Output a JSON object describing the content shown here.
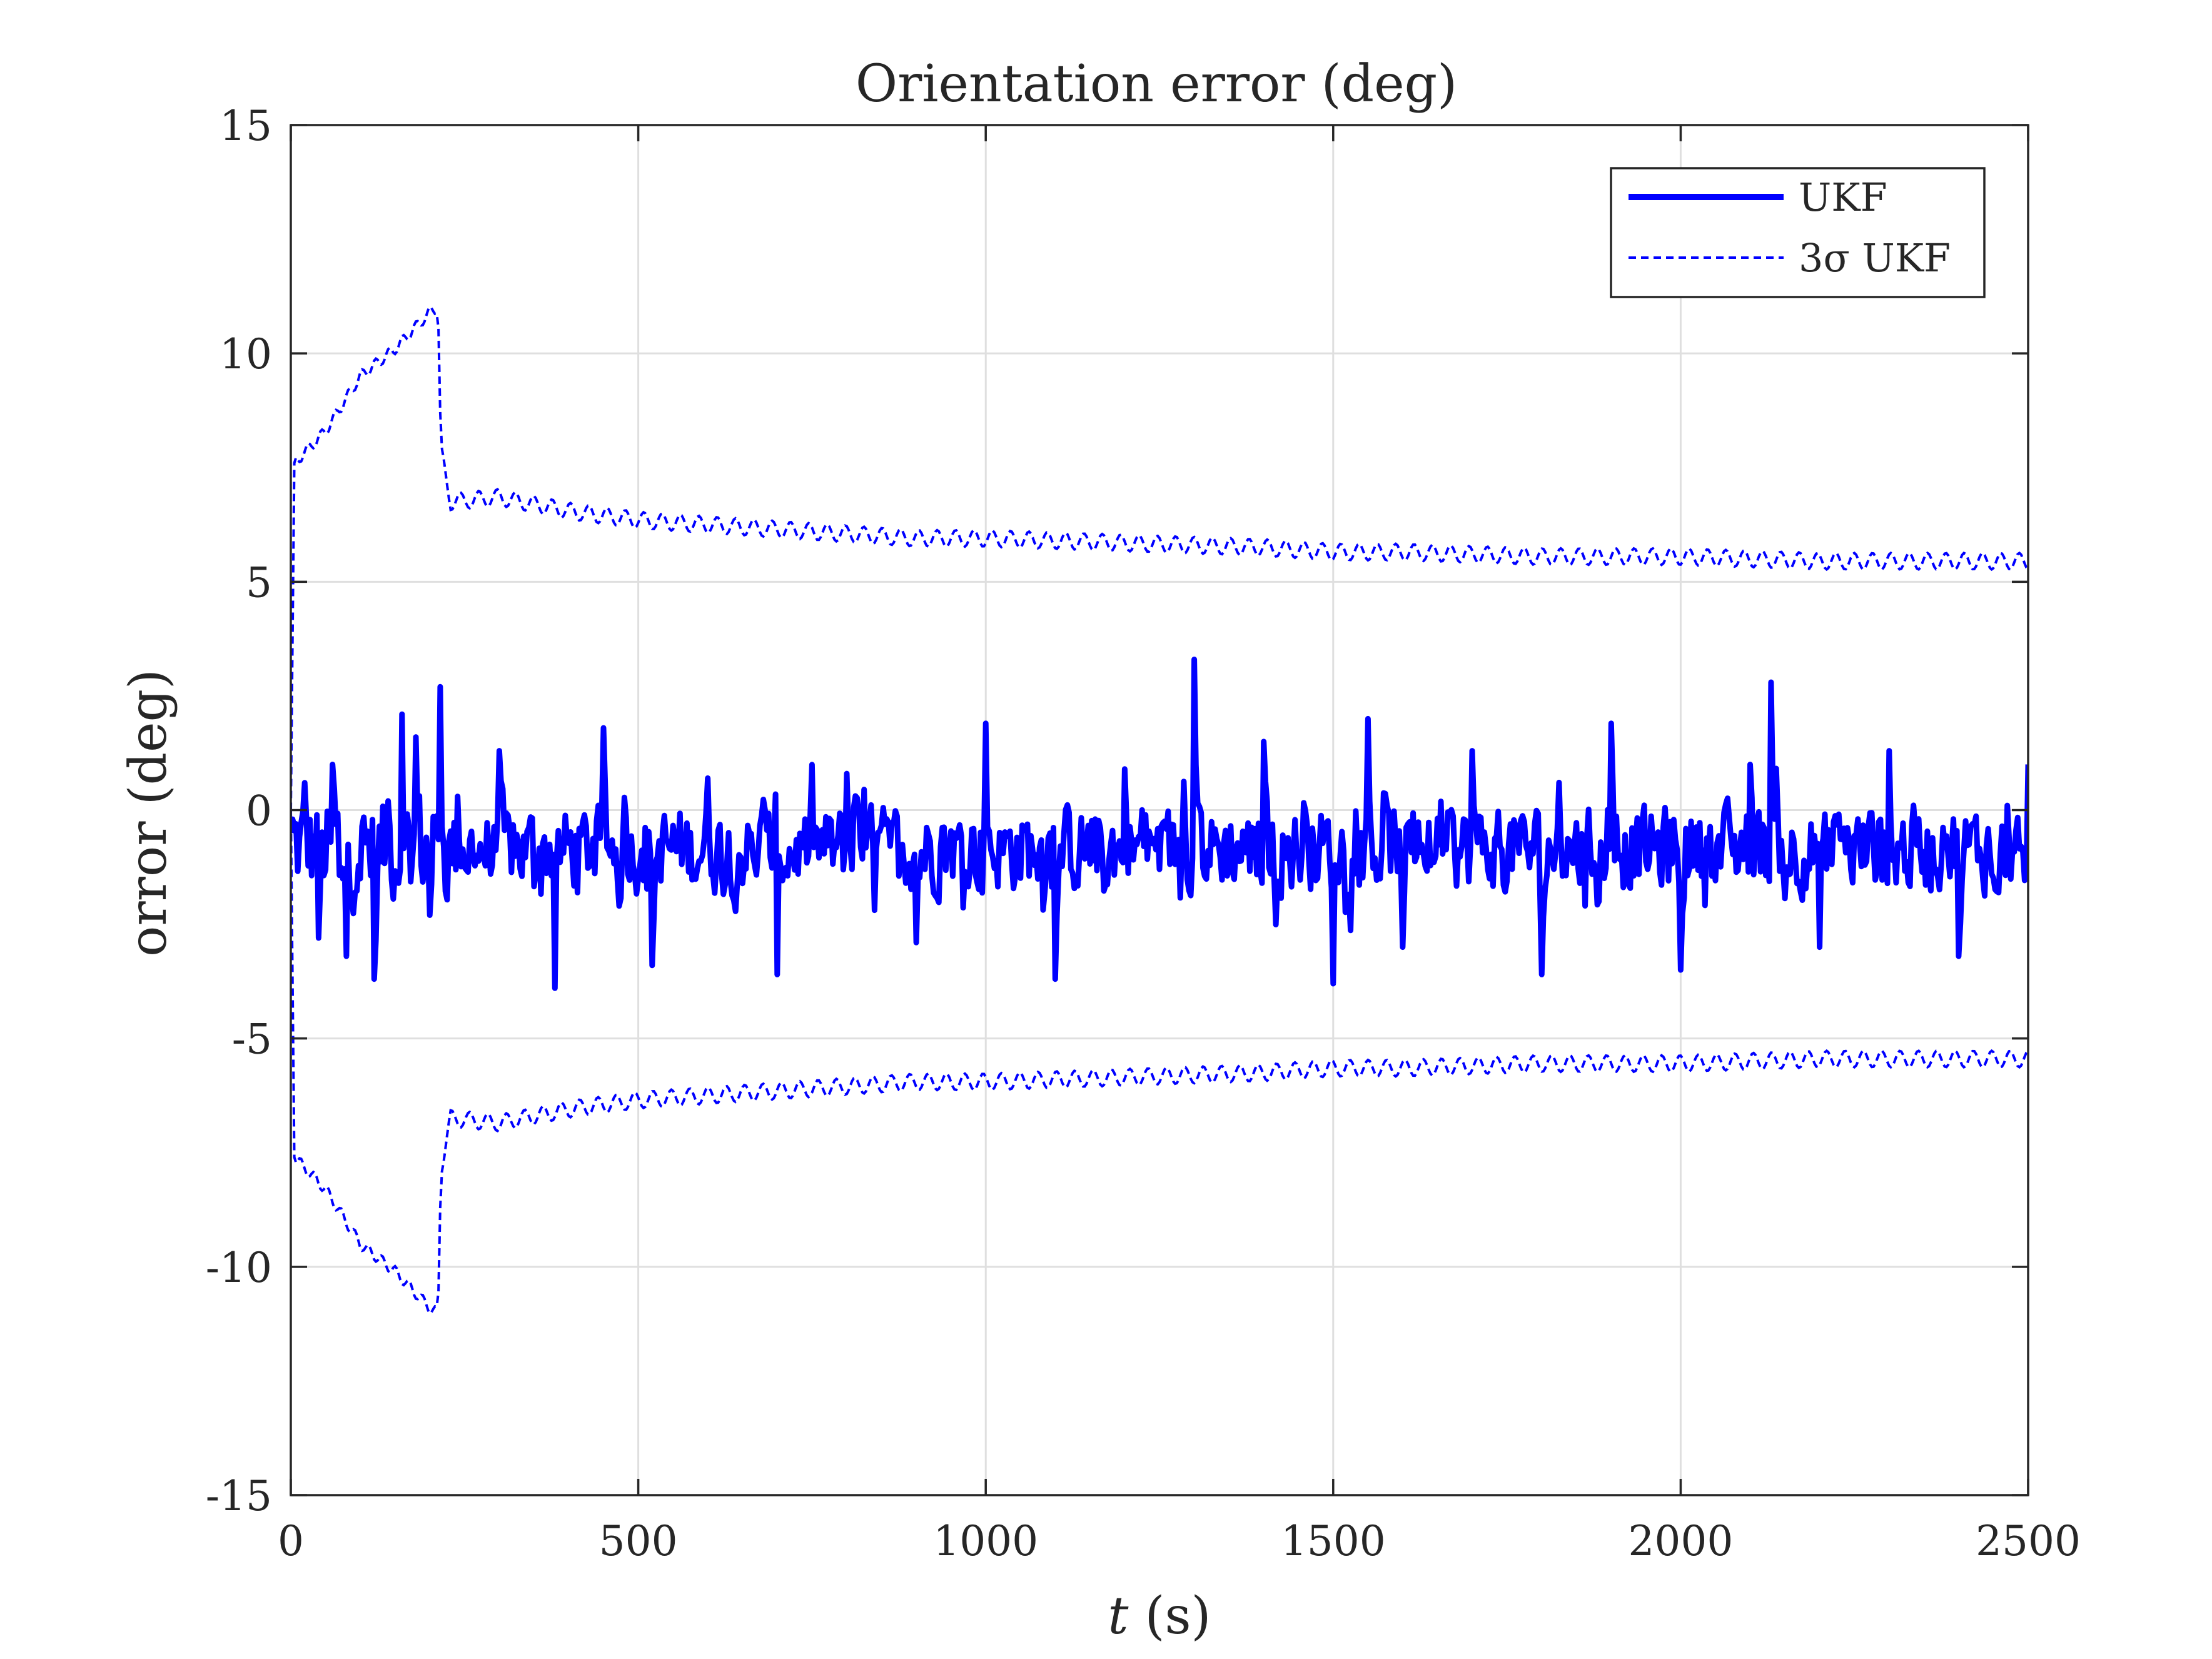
{
  "chart_data": {
    "type": "line",
    "title": "Orientation error (deg)",
    "xlabel_italic": "t",
    "xlabel_rest": " (s)",
    "ylabel": "orror (deg)",
    "xlim": [
      0,
      2500
    ],
    "ylim": [
      -15,
      15
    ],
    "xticks": [
      0,
      500,
      1000,
      1500,
      2000,
      2500
    ],
    "xtick_labels": [
      "0",
      "500",
      "1000",
      "1500",
      "2000",
      "2500"
    ],
    "yticks": [
      -15,
      -10,
      -5,
      0,
      5,
      10,
      15
    ],
    "ytick_labels": [
      "-15",
      "-10",
      "-5",
      "0",
      "5",
      "10",
      "15"
    ],
    "grid": true,
    "legend_position": "top-right",
    "series": [
      {
        "name": "UKF",
        "color": "#0000ff",
        "style": "solid",
        "note": "noisy estimation error oscillating around about -1 deg, mostly between -3 and +2 deg",
        "x": [
          0,
          20,
          40,
          60,
          80,
          100,
          120,
          140,
          160,
          180,
          200,
          215,
          240,
          300,
          380,
          450,
          520,
          600,
          700,
          800,
          900,
          1000,
          1100,
          1200,
          1300,
          1400,
          1500,
          1550,
          1600,
          1700,
          1800,
          1900,
          2000,
          2100,
          2130,
          2200,
          2300,
          2400,
          2500
        ],
        "y": [
          -0.5,
          0.6,
          -2.8,
          1.0,
          -3.2,
          -1.5,
          -3.7,
          0.2,
          2.1,
          1.6,
          -2.3,
          2.7,
          0.3,
          1.3,
          -3.9,
          1.8,
          -3.4,
          0.7,
          -3.6,
          0.8,
          -2.9,
          1.9,
          -3.7,
          0.9,
          3.3,
          1.5,
          -3.8,
          2.0,
          -3.0,
          1.3,
          -3.6,
          1.9,
          -3.5,
          1.0,
          2.8,
          -3.0,
          1.3,
          -3.2,
          1.0
        ],
        "values_note": "the extreme peaks of the noisy trace; the rest is dense noise around -1"
      },
      {
        "name": "3σ UKF",
        "color": "#0000ff",
        "style": "dashed",
        "x": [
          0,
          5,
          50,
          100,
          150,
          200,
          212,
          216,
          230,
          300,
          400,
          500,
          600,
          700,
          800,
          900,
          1000,
          1200,
          1400,
          1500,
          1600,
          1800,
          2000,
          2200,
          2400,
          2500
        ],
        "upper": [
          0.0,
          7.6,
          8.3,
          9.5,
          10.1,
          10.9,
          11.0,
          7.9,
          6.8,
          6.9,
          6.6,
          6.4,
          6.3,
          6.2,
          6.1,
          6.0,
          6.0,
          5.9,
          5.8,
          5.7,
          5.7,
          5.6,
          5.6,
          5.5,
          5.5,
          5.5
        ],
        "lower": [
          0.0,
          -7.6,
          -8.3,
          -9.5,
          -10.1,
          -10.9,
          -11.0,
          -7.9,
          -6.8,
          -6.9,
          -6.6,
          -6.4,
          -6.3,
          -6.2,
          -6.1,
          -6.0,
          -6.0,
          -5.9,
          -5.8,
          -5.7,
          -5.7,
          -5.6,
          -5.6,
          -5.5,
          -5.5,
          -5.5
        ]
      }
    ],
    "legend": {
      "entries": [
        "UKF",
        "3σ UKF"
      ]
    }
  }
}
